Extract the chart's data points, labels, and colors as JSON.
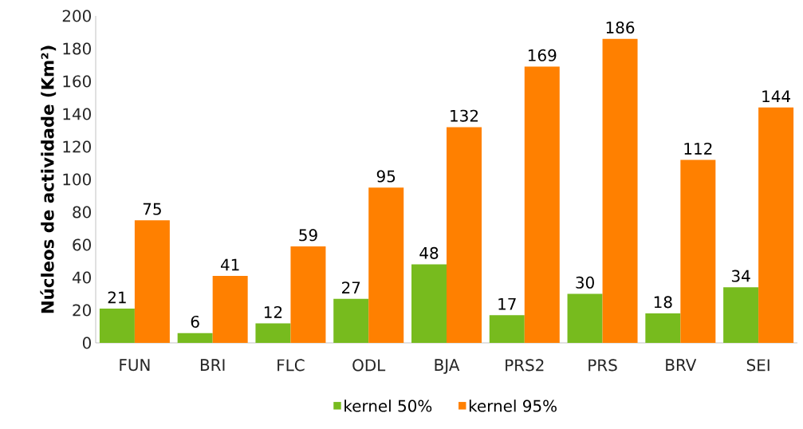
{
  "chart_data": {
    "type": "bar",
    "ylabel": "Núcleos de actividade (Km²)",
    "categories": [
      "FUN",
      "BRI",
      "FLC",
      "ODL",
      "BJA",
      "PRS2",
      "PRS",
      "BRV",
      "SEI"
    ],
    "series": [
      {
        "name": "kernel 50%",
        "color": "#77bb1e",
        "values": [
          21,
          6,
          12,
          27,
          48,
          17,
          30,
          18,
          34
        ]
      },
      {
        "name": "kernel 95%",
        "color": "#ff8000",
        "values": [
          75,
          41,
          59,
          95,
          132,
          169,
          186,
          112,
          144
        ]
      }
    ],
    "ylim": [
      0,
      200
    ],
    "yticks": [
      0,
      20,
      40,
      60,
      80,
      100,
      120,
      140,
      160,
      180,
      200
    ],
    "data_labels": true,
    "grid": false,
    "legend": "bottom"
  }
}
